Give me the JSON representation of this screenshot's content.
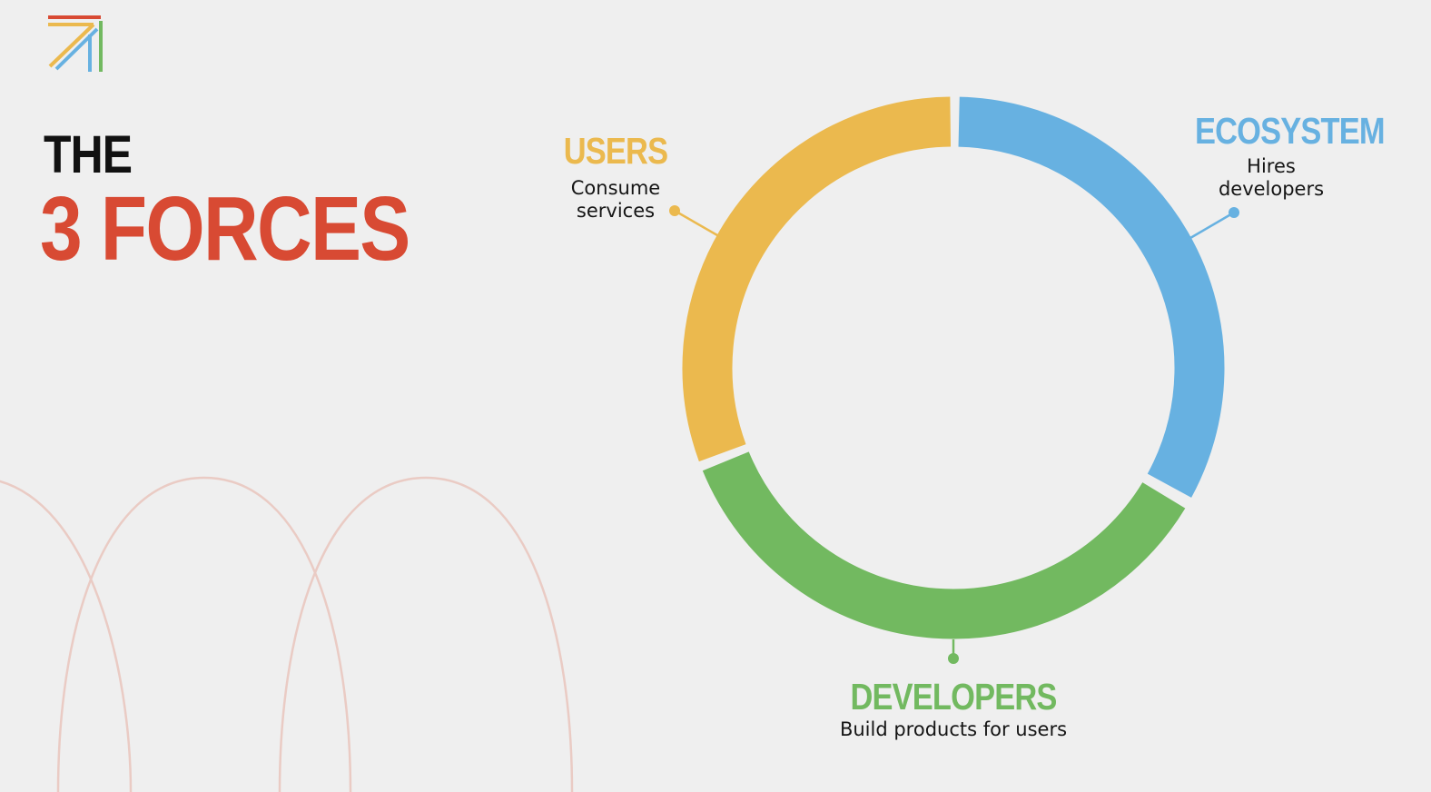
{
  "title": {
    "line1": "THE",
    "line2": "3 FORCES"
  },
  "colors": {
    "background": "#efefef",
    "red": "#d84a33",
    "yellow": "#ebb94e",
    "blue": "#67b1e1",
    "green": "#72b960",
    "arc_decoration": "#eacbc4"
  },
  "logo": {
    "icon": "arrow-logo-icon"
  },
  "forces": [
    {
      "id": "users",
      "name": "USERS",
      "description": "Consume\nservices",
      "color": "#ebb94e"
    },
    {
      "id": "ecosystem",
      "name": "ECOSYSTEM",
      "description": "Hires\ndevelopers",
      "color": "#67b1e1"
    },
    {
      "id": "developers",
      "name": "DEVELOPERS",
      "description": "Build products for users",
      "color": "#72b960"
    }
  ]
}
